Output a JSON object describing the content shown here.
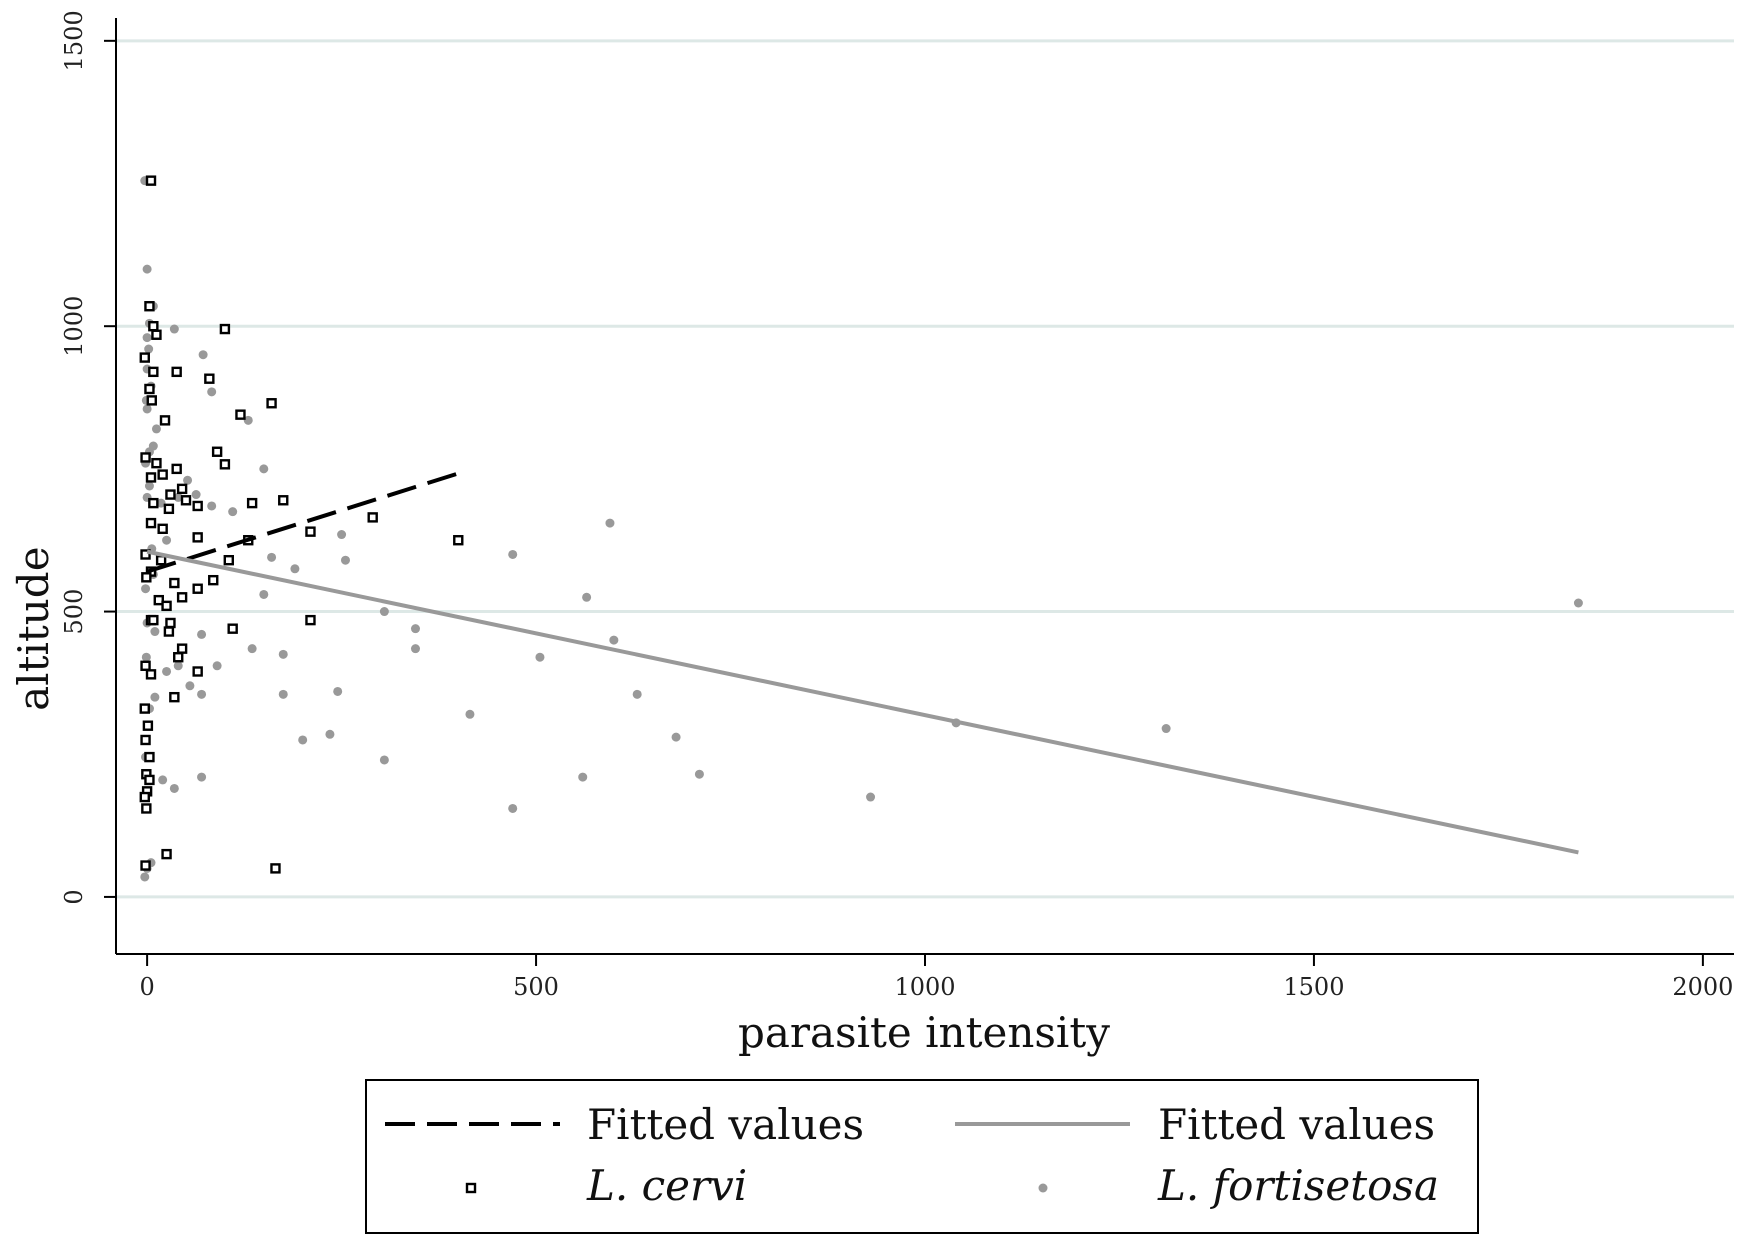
{
  "chart_data": {
    "type": "scatter",
    "xlabel": "parasite intensity",
    "ylabel": "altitude",
    "xlim": [
      -40,
      2040
    ],
    "ylim": [
      -100,
      1540
    ],
    "xticks": [
      0,
      500,
      1000,
      1500,
      2000
    ],
    "yticks": [
      0,
      500,
      1000,
      1500
    ],
    "grid": "horizontal",
    "colors": {
      "cervi": "#000000",
      "fortisetosa": "#999999",
      "grid": "#dde8e6",
      "axis": "#000000"
    },
    "legend": {
      "placement": "bottom",
      "entries": [
        {
          "kind": "dashed-line",
          "label": "Fitted values",
          "italic": false
        },
        {
          "kind": "solid-line",
          "label": "Fitted values",
          "italic": false
        },
        {
          "kind": "hollow-square",
          "label": "L. cervi",
          "italic": true
        },
        {
          "kind": "gray-dot",
          "label": "L. fortisetosa",
          "italic": true
        }
      ]
    },
    "series": [
      {
        "name": "L. cervi",
        "marker": "hollow-square",
        "points": [
          [
            5,
            1255
          ],
          [
            3,
            1035
          ],
          [
            8,
            1000
          ],
          [
            12,
            985
          ],
          [
            100,
            995
          ],
          [
            -3,
            945
          ],
          [
            8,
            920
          ],
          [
            38,
            920
          ],
          [
            80,
            908
          ],
          [
            3,
            890
          ],
          [
            6,
            870
          ],
          [
            160,
            865
          ],
          [
            120,
            845
          ],
          [
            23,
            835
          ],
          [
            90,
            780
          ],
          [
            100,
            758
          ],
          [
            -2,
            770
          ],
          [
            12,
            760
          ],
          [
            38,
            750
          ],
          [
            20,
            740
          ],
          [
            5,
            735
          ],
          [
            175,
            695
          ],
          [
            135,
            690
          ],
          [
            45,
            715
          ],
          [
            30,
            705
          ],
          [
            50,
            695
          ],
          [
            8,
            690
          ],
          [
            65,
            685
          ],
          [
            28,
            680
          ],
          [
            290,
            665
          ],
          [
            5,
            655
          ],
          [
            20,
            645
          ],
          [
            65,
            630
          ],
          [
            130,
            625
          ],
          [
            400,
            625
          ],
          [
            210,
            640
          ],
          [
            105,
            590
          ],
          [
            18,
            590
          ],
          [
            85,
            555
          ],
          [
            -2,
            600
          ],
          [
            5,
            570
          ],
          [
            65,
            540
          ],
          [
            35,
            550
          ],
          [
            15,
            520
          ],
          [
            45,
            525
          ],
          [
            25,
            510
          ],
          [
            -1,
            560
          ],
          [
            5,
            485
          ],
          [
            30,
            480
          ],
          [
            28,
            465
          ],
          [
            110,
            470
          ],
          [
            210,
            485
          ],
          [
            8,
            485
          ],
          [
            45,
            435
          ],
          [
            40,
            420
          ],
          [
            65,
            395
          ],
          [
            -2,
            405
          ],
          [
            5,
            390
          ],
          [
            35,
            350
          ],
          [
            -3,
            330
          ],
          [
            1,
            300
          ],
          [
            -2,
            275
          ],
          [
            3,
            245
          ],
          [
            -1,
            215
          ],
          [
            3,
            205
          ],
          [
            0,
            185
          ],
          [
            -3,
            175
          ],
          [
            -1,
            155
          ],
          [
            -2,
            55
          ],
          [
            25,
            75
          ],
          [
            165,
            50
          ]
        ]
      },
      {
        "name": "L. fortisetosa",
        "marker": "gray-dot",
        "points": [
          [
            -3,
            1255
          ],
          [
            0,
            1100
          ],
          [
            8,
            1035
          ],
          [
            3,
            1005
          ],
          [
            35,
            995
          ],
          [
            0,
            980
          ],
          [
            72,
            950
          ],
          [
            83,
            885
          ],
          [
            130,
            835
          ],
          [
            150,
            750
          ],
          [
            52,
            730
          ],
          [
            40,
            700
          ],
          [
            63,
            705
          ],
          [
            83,
            685
          ],
          [
            110,
            675
          ],
          [
            0,
            925
          ],
          [
            5,
            895
          ],
          [
            0,
            855
          ],
          [
            12,
            820
          ],
          [
            8,
            790
          ],
          [
            -2,
            760
          ],
          [
            3,
            720
          ],
          [
            18,
            690
          ],
          [
            250,
            635
          ],
          [
            25,
            625
          ],
          [
            160,
            595
          ],
          [
            255,
            590
          ],
          [
            190,
            575
          ],
          [
            470,
            600
          ],
          [
            595,
            655
          ],
          [
            8,
            565
          ],
          [
            150,
            530
          ],
          [
            565,
            525
          ],
          [
            305,
            500
          ],
          [
            345,
            470
          ],
          [
            600,
            450
          ],
          [
            0,
            480
          ],
          [
            10,
            465
          ],
          [
            70,
            460
          ],
          [
            90,
            405
          ],
          [
            175,
            425
          ],
          [
            135,
            435
          ],
          [
            40,
            405
          ],
          [
            25,
            395
          ],
          [
            55,
            370
          ],
          [
            70,
            355
          ],
          [
            175,
            355
          ],
          [
            245,
            360
          ],
          [
            505,
            420
          ],
          [
            345,
            435
          ],
          [
            630,
            355
          ],
          [
            415,
            320
          ],
          [
            1040,
            305
          ],
          [
            1310,
            295
          ],
          [
            680,
            280
          ],
          [
            200,
            275
          ],
          [
            235,
            285
          ],
          [
            305,
            240
          ],
          [
            710,
            215
          ],
          [
            560,
            210
          ],
          [
            70,
            210
          ],
          [
            20,
            205
          ],
          [
            35,
            190
          ],
          [
            470,
            155
          ],
          [
            930,
            175
          ],
          [
            1840,
            515
          ],
          [
            -2,
            245
          ],
          [
            0,
            50
          ],
          [
            -3,
            35
          ],
          [
            5,
            60
          ],
          [
            -1,
            420
          ],
          [
            3,
            330
          ],
          [
            10,
            350
          ],
          [
            -2,
            540
          ],
          [
            6,
            610
          ],
          [
            0,
            700
          ],
          [
            3,
            780
          ],
          [
            -1,
            870
          ],
          [
            2,
            960
          ]
        ]
      }
    ],
    "fitted_lines": [
      {
        "name": "Fitted values",
        "series": "L. cervi",
        "style": "dashed",
        "x": [
          0,
          400
        ],
        "y": [
          570,
          742
        ]
      },
      {
        "name": "Fitted values",
        "series": "L. fortisetosa",
        "style": "solid",
        "x": [
          0,
          1840
        ],
        "y": [
          605,
          78
        ]
      }
    ]
  }
}
